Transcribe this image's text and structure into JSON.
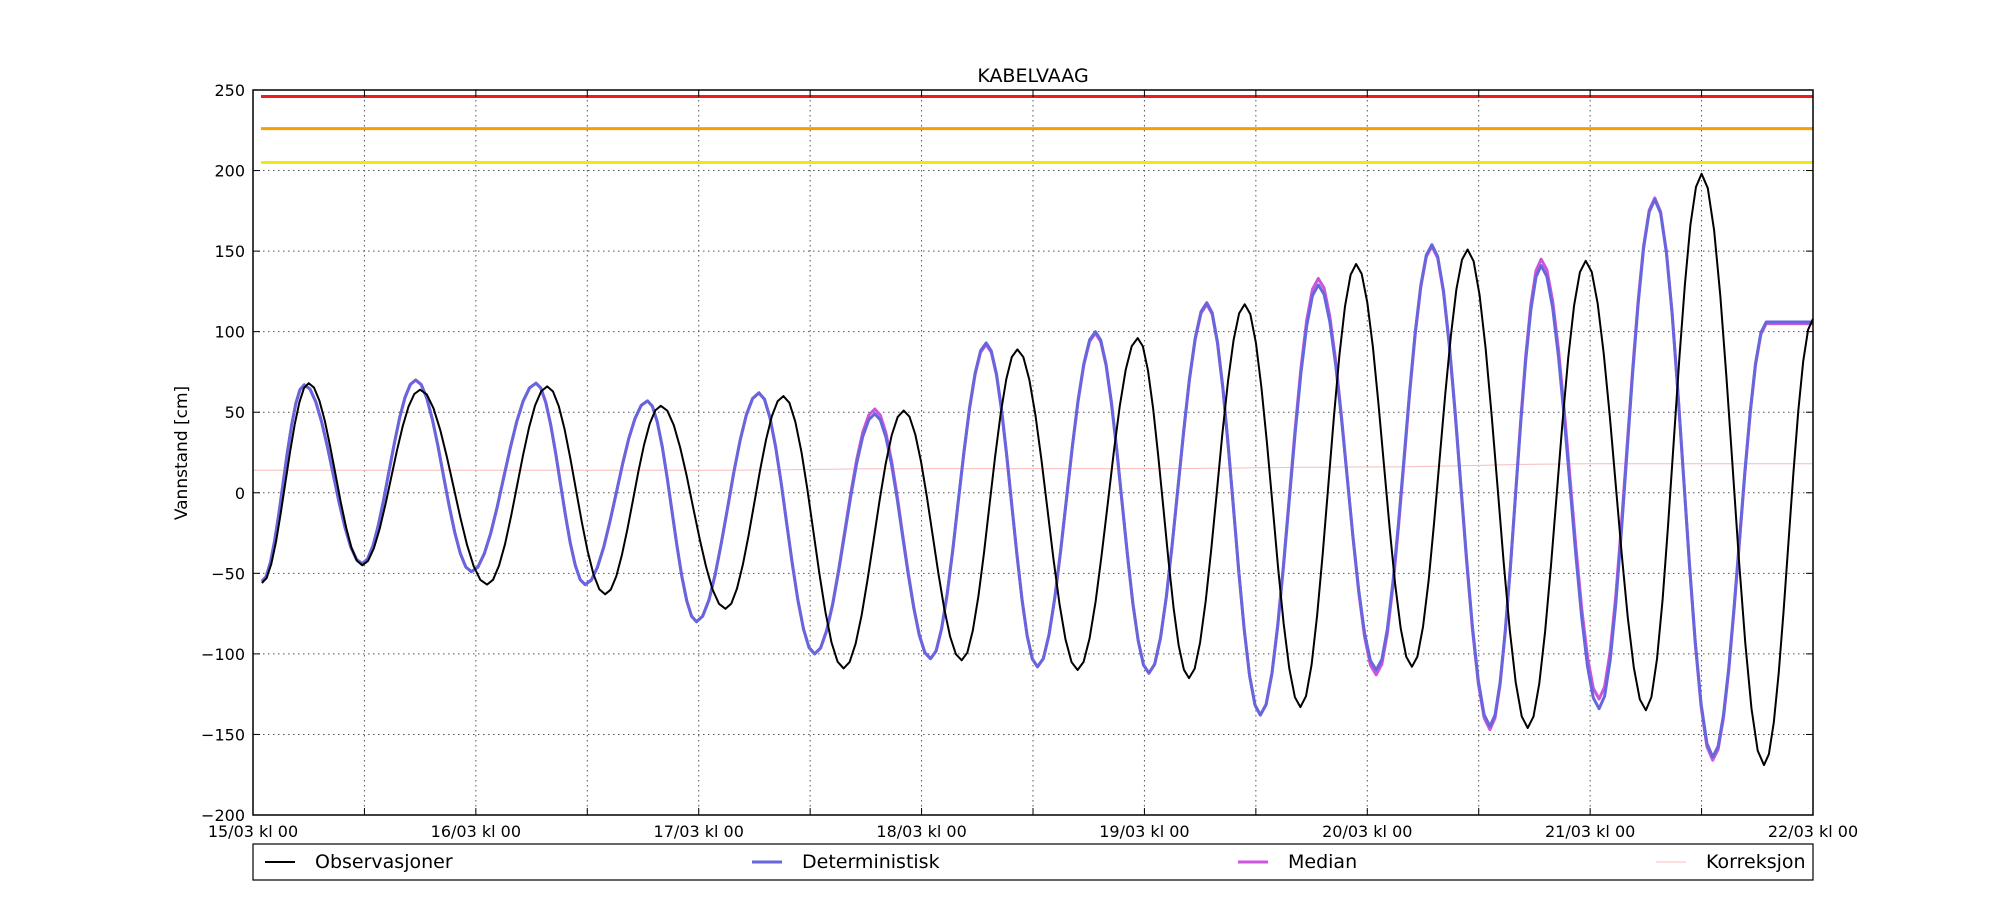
{
  "chart_data": {
    "type": "line",
    "title": "KABELVAAG",
    "xlabel": "",
    "ylabel": "Vannstand [cm]",
    "xlim": [
      0,
      7
    ],
    "ylim": [
      -200,
      250
    ],
    "yticks": [
      -200,
      -150,
      -100,
      -50,
      0,
      50,
      100,
      150,
      200,
      250
    ],
    "xticks": [
      {
        "x": 0,
        "label": "15/03 kl 00"
      },
      {
        "x": 0.5,
        "label": ""
      },
      {
        "x": 1,
        "label": "16/03 kl 00"
      },
      {
        "x": 1.5,
        "label": ""
      },
      {
        "x": 2,
        "label": "17/03 kl 00"
      },
      {
        "x": 2.5,
        "label": ""
      },
      {
        "x": 3,
        "label": "18/03 kl 00"
      },
      {
        "x": 3.5,
        "label": ""
      },
      {
        "x": 4,
        "label": "19/03 kl 00"
      },
      {
        "x": 4.5,
        "label": ""
      },
      {
        "x": 5,
        "label": "20/03 kl 00"
      },
      {
        "x": 5.5,
        "label": ""
      },
      {
        "x": 6,
        "label": "21/03 kl 00"
      },
      {
        "x": 6.5,
        "label": ""
      },
      {
        "x": 7,
        "label": "22/03 kl 00"
      }
    ],
    "grid": true,
    "legend_position": "bottom",
    "thresholds": [
      {
        "value": 246,
        "color": "#ee1c1c"
      },
      {
        "value": 226,
        "color": "#f5a000"
      },
      {
        "value": 205,
        "color": "#f2ea00"
      }
    ],
    "series": [
      {
        "name": "Korreksjon",
        "color": "#f7bcbc",
        "width": 1,
        "x": [
          0,
          1,
          2,
          3,
          4,
          5,
          6,
          7
        ],
        "y": [
          14,
          14,
          14,
          15,
          15,
          16,
          18,
          18
        ]
      },
      {
        "name": "Median",
        "color": "#cc55dd",
        "width": 3,
        "x": [
          0.04,
          0.23,
          0.49,
          0.73,
          0.98,
          1.27,
          1.49,
          1.77,
          1.99,
          2.27,
          2.52,
          2.79,
          3.04,
          3.29,
          3.52,
          3.78,
          4.02,
          4.28,
          4.52,
          4.78,
          5.04,
          5.29,
          5.55,
          5.78,
          6.04,
          6.29,
          6.55,
          6.79,
          7.0
        ],
        "y": [
          -55,
          67,
          -44,
          70,
          -49,
          68,
          -57,
          57,
          -80,
          62,
          -100,
          52,
          -103,
          92,
          -108,
          99,
          -112,
          117,
          -138,
          133,
          -113,
          153,
          -147,
          145,
          -128,
          183,
          -166,
          105,
          105
        ]
      },
      {
        "name": "Deterministisk",
        "color": "#6666dd",
        "width": 3,
        "x": [
          0.04,
          0.23,
          0.49,
          0.73,
          0.98,
          1.27,
          1.49,
          1.77,
          1.99,
          2.27,
          2.52,
          2.79,
          3.04,
          3.29,
          3.52,
          3.78,
          4.02,
          4.28,
          4.52,
          4.78,
          5.04,
          5.29,
          5.55,
          5.78,
          6.04,
          6.29,
          6.55,
          6.79,
          7.0
        ],
        "y": [
          -55,
          67,
          -44,
          70,
          -49,
          68,
          -57,
          57,
          -80,
          62,
          -100,
          49,
          -103,
          93,
          -108,
          100,
          -112,
          118,
          -138,
          129,
          -110,
          154,
          -145,
          141,
          -134,
          182,
          -164,
          106,
          106
        ]
      },
      {
        "name": "Observasjoner",
        "color": "#000000",
        "width": 2,
        "x": [
          0.04,
          0.25,
          0.49,
          0.75,
          1.05,
          1.32,
          1.58,
          1.83,
          2.12,
          2.38,
          2.65,
          2.92,
          3.18,
          3.43,
          3.7,
          3.97,
          4.2,
          4.45,
          4.7,
          4.95,
          5.2,
          5.45,
          5.72,
          5.98,
          6.25,
          6.5,
          6.78,
          7.0
        ],
        "y": [
          -56,
          68,
          -45,
          64,
          -57,
          66,
          -63,
          54,
          -72,
          60,
          -109,
          51,
          -104,
          89,
          -110,
          96,
          -115,
          117,
          -133,
          142,
          -108,
          151,
          -146,
          144,
          -135,
          198,
          -169,
          108
        ]
      }
    ],
    "legend": [
      "Observasjoner",
      "Deterministisk",
      "Median",
      "Korreksjon"
    ]
  }
}
